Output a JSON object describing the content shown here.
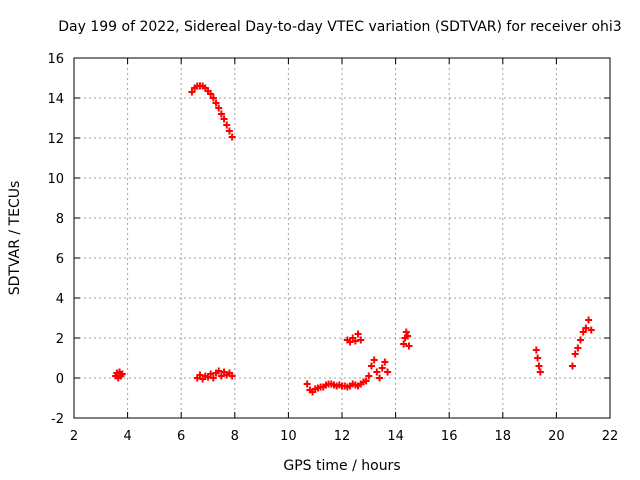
{
  "chart_data": {
    "type": "scatter",
    "title": "Day 199 of 2022, Sidereal Day-to-day VTEC variation (SDTVAR) for receiver ohi3",
    "xlabel": "GPS time / hours",
    "ylabel": "SDTVAR / TECUs",
    "xlim": [
      2,
      22
    ],
    "ylim": [
      -2,
      16
    ],
    "xticks": [
      "2",
      "4",
      "6",
      "8",
      "10",
      "12",
      "14",
      "16",
      "18",
      "20",
      "22"
    ],
    "yticks": [
      "-2",
      "0",
      "2",
      "4",
      "6",
      "8",
      "10",
      "12",
      "14",
      "16"
    ],
    "grid": true,
    "marker": "+",
    "color": "#ff0000",
    "segments": [
      {
        "x": [
          3.55,
          3.6,
          3.65,
          3.7,
          3.75,
          3.8
        ],
        "y": [
          0.1,
          0.25,
          0.0,
          0.3,
          0.1,
          0.2
        ]
      },
      {
        "x": [
          6.4,
          6.5,
          6.6,
          6.7,
          6.8,
          6.9,
          7.0,
          7.1,
          7.2,
          7.3,
          7.4,
          7.5,
          7.6,
          7.7,
          7.8,
          7.9
        ],
        "y": [
          14.3,
          14.5,
          14.6,
          14.6,
          14.6,
          14.5,
          14.35,
          14.2,
          14.0,
          13.75,
          13.5,
          13.2,
          12.95,
          12.65,
          12.35,
          12.05
        ]
      },
      {
        "x": [
          6.6,
          6.7,
          6.8,
          6.9,
          7.0,
          7.1,
          7.2,
          7.3,
          7.4,
          7.5,
          7.6,
          7.7,
          7.8,
          7.9
        ],
        "y": [
          0.0,
          0.15,
          -0.05,
          0.1,
          0.05,
          0.2,
          0.0,
          0.25,
          0.35,
          0.1,
          0.3,
          0.15,
          0.25,
          0.1
        ]
      },
      {
        "x": [
          10.7,
          10.8,
          10.9,
          11.0,
          11.1,
          11.2,
          11.3,
          11.4,
          11.5,
          11.6,
          11.7,
          11.8,
          11.9,
          12.0,
          12.1,
          12.2,
          12.3,
          12.4,
          12.5,
          12.6,
          12.7,
          12.8,
          12.9
        ],
        "y": [
          -0.3,
          -0.6,
          -0.7,
          -0.55,
          -0.5,
          -0.45,
          -0.45,
          -0.35,
          -0.3,
          -0.3,
          -0.35,
          -0.4,
          -0.35,
          -0.4,
          -0.4,
          -0.45,
          -0.4,
          -0.3,
          -0.35,
          -0.4,
          -0.3,
          -0.2,
          -0.15
        ]
      },
      {
        "x": [
          12.2,
          12.3,
          12.4,
          12.5,
          12.6,
          12.7
        ],
        "y": [
          1.9,
          1.8,
          2.0,
          1.85,
          2.2,
          1.9
        ]
      },
      {
        "x": [
          13.0,
          13.1,
          13.2,
          13.3,
          13.4,
          13.5,
          13.6,
          13.7
        ],
        "y": [
          0.1,
          0.6,
          0.9,
          0.3,
          0.0,
          0.5,
          0.8,
          0.3
        ]
      },
      {
        "x": [
          14.3,
          14.35,
          14.4,
          14.45,
          14.5
        ],
        "y": [
          1.7,
          2.0,
          2.3,
          2.1,
          1.6
        ]
      },
      {
        "x": [
          19.25,
          19.3,
          19.35,
          19.4
        ],
        "y": [
          1.4,
          1.0,
          0.6,
          0.3
        ]
      },
      {
        "x": [
          20.6,
          20.7,
          20.8,
          20.9,
          21.0,
          21.1,
          21.2,
          21.3
        ],
        "y": [
          0.6,
          1.2,
          1.5,
          1.9,
          2.3,
          2.5,
          2.9,
          2.4
        ]
      }
    ]
  }
}
